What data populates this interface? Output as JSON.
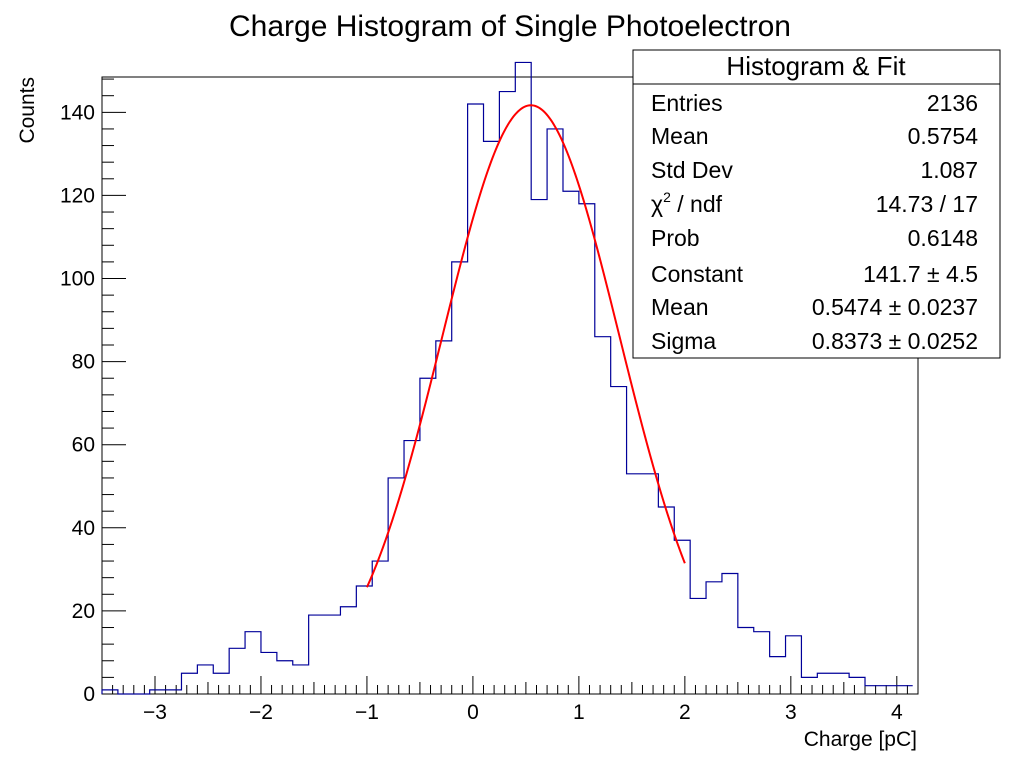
{
  "chart_data": {
    "type": "bar",
    "title": "Charge Histogram of Single Photoelectron",
    "xlabel": "Charge [pC]",
    "ylabel": "Counts",
    "xlim": [
      -3.5,
      4.2
    ],
    "ylim": [
      0,
      148.5
    ],
    "xticks": [
      -3,
      -2,
      -1,
      0,
      1,
      2,
      3,
      4
    ],
    "xtick_labels": [
      "−3",
      "−2",
      "−1",
      "0",
      "1",
      "2",
      "3",
      "4"
    ],
    "yticks": [
      0,
      20,
      40,
      60,
      80,
      100,
      120,
      140
    ],
    "ytick_labels": [
      "0",
      "20",
      "40",
      "60",
      "80",
      "100",
      "120",
      "140"
    ],
    "grid": false,
    "histogram": {
      "bin_edges_start": -3.5,
      "bin_width": 0.15,
      "counts": [
        1,
        0,
        0,
        1,
        1,
        5,
        7,
        5,
        11,
        15,
        10,
        8,
        7,
        19,
        19,
        21,
        26,
        32,
        52,
        61,
        76,
        85,
        104,
        142,
        133,
        145,
        152,
        119,
        136,
        121,
        118,
        86,
        74,
        53,
        53,
        45,
        37,
        23,
        27,
        29,
        16,
        15,
        9,
        14,
        4,
        5,
        5,
        4,
        2,
        2,
        2
      ],
      "color": "#000099"
    },
    "fit": {
      "function": "gaus",
      "range": [
        -1.0,
        2.0
      ],
      "constant": 141.7,
      "mean": 0.5474,
      "sigma": 0.8373,
      "color": "#ff0000"
    },
    "stats_box": {
      "title": "Histogram & Fit",
      "position": "top-right",
      "rows": [
        {
          "label": "Entries",
          "value": "2136"
        },
        {
          "label": "Mean",
          "value": "0.5754"
        },
        {
          "label": "Std Dev",
          "value": "1.087"
        },
        {
          "label_symbol": "χ",
          "label_sup": "2",
          "label_rest": " / ndf",
          "value": "14.73 / 17"
        },
        {
          "label": "Prob",
          "value": "0.6148"
        },
        {
          "label": "Constant",
          "value": "141.7 ± 4.5"
        },
        {
          "label": "Mean",
          "value": "0.5474 ± 0.0237"
        },
        {
          "label": "Sigma",
          "value": "0.8373 ± 0.0252"
        }
      ]
    }
  }
}
